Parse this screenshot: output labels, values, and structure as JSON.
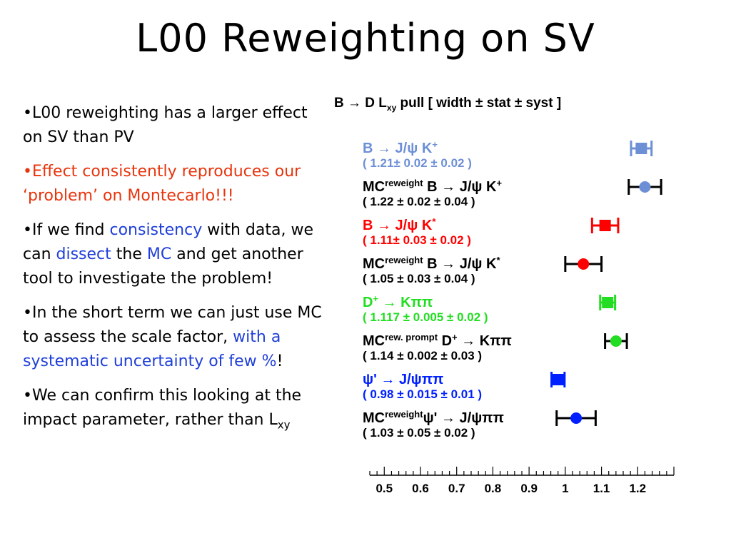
{
  "slide": {
    "title": "L00 Reweighting on SV",
    "bullets": [
      {
        "segments": [
          {
            "text": "•L00 reweighting has a larger effect on SV than PV",
            "color": "black"
          }
        ]
      },
      {
        "segments": [
          {
            "text": "•Effect consistently reproduces our ‘problem’ on Montecarlo!!!",
            "color": "red"
          }
        ]
      },
      {
        "segments": [
          {
            "text": "•If we find ",
            "color": "black"
          },
          {
            "text": "consistency",
            "color": "blue"
          },
          {
            "text": " with data, we can ",
            "color": "black"
          },
          {
            "text": "dissect",
            "color": "blue"
          },
          {
            "text": " the ",
            "color": "black"
          },
          {
            "text": "MC",
            "color": "blue"
          },
          {
            "text": " and get another tool to investigate the problem!",
            "color": "black"
          }
        ]
      },
      {
        "segments": [
          {
            "text": "•In the short term we can just use MC to assess the scale factor, ",
            "color": "black"
          },
          {
            "text": "with a systematic uncertainty of few %",
            "color": "blue"
          },
          {
            "text": "!",
            "color": "black"
          }
        ]
      },
      {
        "segments": [
          {
            "text": "•We can confirm this looking at the impact parameter, rather than L",
            "color": "black"
          },
          {
            "text": "xy",
            "color": "black",
            "sub": true
          }
        ]
      }
    ]
  },
  "figure": {
    "title": "B → D Lxy pull [ width ± stat ± syst ]",
    "title_parts": {
      "main": "B → D L",
      "sub": "xy",
      "rest": " pull [ width ± stat ± syst ]"
    },
    "colors": {
      "blue_light": "#6d8fd6",
      "black": "#000000",
      "red": "#ff0000",
      "green": "#22dd22",
      "blue": "#0020ff"
    }
  },
  "chart_data": {
    "type": "scatter",
    "title": "B → D Lxy pull [ width ± stat ± syst ]",
    "xlim": [
      0.46,
      1.3
    ],
    "x_ticks": [
      0.5,
      0.6,
      0.7,
      0.8,
      0.9,
      1,
      1.1,
      1.2
    ],
    "series": [
      {
        "name": "B → J/ψ K+",
        "label_line1": "B → J/ψ K+",
        "label_line2": "( 1.21± 0.02 ± 0.02 )",
        "value": 1.21,
        "stat": 0.02,
        "syst": 0.02,
        "color": "#6d8fd6",
        "label_color": "#6d8fd6",
        "marker": "square"
      },
      {
        "name": "MC reweight B → J/ψ K+",
        "label_line1": "MC reweight B → J/ψ K+",
        "label_line2": "( 1.22 ± 0.02 ± 0.04 )",
        "value": 1.22,
        "stat": 0.02,
        "syst": 0.04,
        "color": "#6d8fd6",
        "label_color": "#000000",
        "marker": "circle"
      },
      {
        "name": "B → J/ψ K*",
        "label_line1": "B → J/ψ K*",
        "label_line2": "( 1.11± 0.03 ± 0.02 )",
        "value": 1.11,
        "stat": 0.03,
        "syst": 0.02,
        "color": "#ff0000",
        "label_color": "#ff0000",
        "marker": "square"
      },
      {
        "name": "MC reweight B → J/ψ K*",
        "label_line1": "MC reweight B → J/ψ K*",
        "label_line2": "( 1.05 ± 0.03 ± 0.04 )",
        "value": 1.05,
        "stat": 0.03,
        "syst": 0.04,
        "color": "#ff0000",
        "label_color": "#000000",
        "marker": "circle"
      },
      {
        "name": "D+ → Kππ",
        "label_line1": "D+ → Kππ",
        "label_line2": "( 1.117 ± 0.005 ± 0.02 )",
        "value": 1.117,
        "stat": 0.005,
        "syst": 0.02,
        "color": "#22dd22",
        "label_color": "#22dd22",
        "marker": "square"
      },
      {
        "name": "MC rew. prompt D+ → Kππ",
        "label_line1": "MC rew. prompt D+ → Kππ",
        "label_line2": "( 1.14 ± 0.002 ± 0.03 )",
        "value": 1.14,
        "stat": 0.002,
        "syst": 0.03,
        "color": "#22dd22",
        "label_color": "#000000",
        "marker": "circle"
      },
      {
        "name": "ψ' → J/ψππ",
        "label_line1": "ψ' → J/ψππ",
        "label_line2": "( 0.98 ± 0.015 ± 0.01 )",
        "value": 0.98,
        "stat": 0.015,
        "syst": 0.01,
        "color": "#0020ff",
        "label_color": "#0020ff",
        "marker": "square"
      },
      {
        "name": "MC reweight ψ' → J/ψππ",
        "label_line1": "MC reweight ψ' → J/ψππ",
        "label_line2": "( 1.03 ± 0.05 ± 0.02 )",
        "value": 1.03,
        "stat": 0.05,
        "syst": 0.02,
        "color": "#0020ff",
        "label_color": "#000000",
        "marker": "circle"
      }
    ],
    "labels_svg": [
      {
        "parts": [
          {
            "t": "B → J/"
          },
          {
            "t": "ψ"
          },
          {
            "t": " K"
          },
          {
            "t": "+",
            "sup": true
          }
        ]
      },
      {
        "parts": [
          {
            "t": "MC"
          },
          {
            "t": "reweight",
            "sup": true
          },
          {
            "t": " B → J/"
          },
          {
            "t": "ψ"
          },
          {
            "t": " K"
          },
          {
            "t": "+",
            "sup": true
          }
        ]
      },
      {
        "parts": [
          {
            "t": "B → J/"
          },
          {
            "t": "ψ"
          },
          {
            "t": " K"
          },
          {
            "t": "*",
            "sup": true
          }
        ]
      },
      {
        "parts": [
          {
            "t": "MC"
          },
          {
            "t": "reweight",
            "sup": true
          },
          {
            "t": " B → J/"
          },
          {
            "t": "ψ"
          },
          {
            "t": " K"
          },
          {
            "t": "*",
            "sup": true
          }
        ]
      },
      {
        "parts": [
          {
            "t": "D"
          },
          {
            "t": "+",
            "sup": true
          },
          {
            "t": " → K"
          },
          {
            "t": "ππ"
          }
        ]
      },
      {
        "parts": [
          {
            "t": "MC"
          },
          {
            "t": "rew. prompt",
            "sup": true
          },
          {
            "t": " D"
          },
          {
            "t": "+",
            "sup": true
          },
          {
            "t": " → K"
          },
          {
            "t": "ππ"
          }
        ]
      },
      {
        "parts": [
          {
            "t": "ψ"
          },
          {
            "t": "' → J/"
          },
          {
            "t": "ψππ"
          }
        ]
      },
      {
        "parts": [
          {
            "t": "MC"
          },
          {
            "t": "reweight",
            "sup": true
          },
          {
            "t": "ψ"
          },
          {
            "t": "' → J/"
          },
          {
            "t": "ψππ"
          }
        ]
      }
    ]
  }
}
